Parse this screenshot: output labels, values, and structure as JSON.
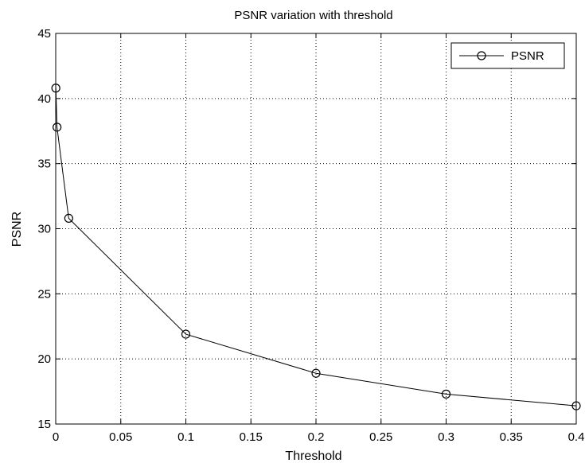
{
  "chart_data": {
    "type": "line",
    "title": "PSNR variation with threshold",
    "xlabel": "Threshold",
    "ylabel": "PSNR",
    "xlim": [
      0,
      0.4
    ],
    "ylim": [
      15,
      45
    ],
    "xticks": [
      "0",
      "0.05",
      "0.1",
      "0.15",
      "0.2",
      "0.25",
      "0.3",
      "0.35",
      "0.4"
    ],
    "yticks": [
      "15",
      "20",
      "25",
      "30",
      "35",
      "40",
      "45"
    ],
    "grid": true,
    "legend_position": "top-right",
    "series": [
      {
        "name": "PSNR",
        "marker": "circle",
        "color": "#000000",
        "x": [
          0.0001,
          0.001,
          0.01,
          0.1,
          0.2,
          0.3,
          0.4
        ],
        "y": [
          40.8,
          37.8,
          30.8,
          21.9,
          18.9,
          17.3,
          16.4
        ]
      }
    ]
  }
}
